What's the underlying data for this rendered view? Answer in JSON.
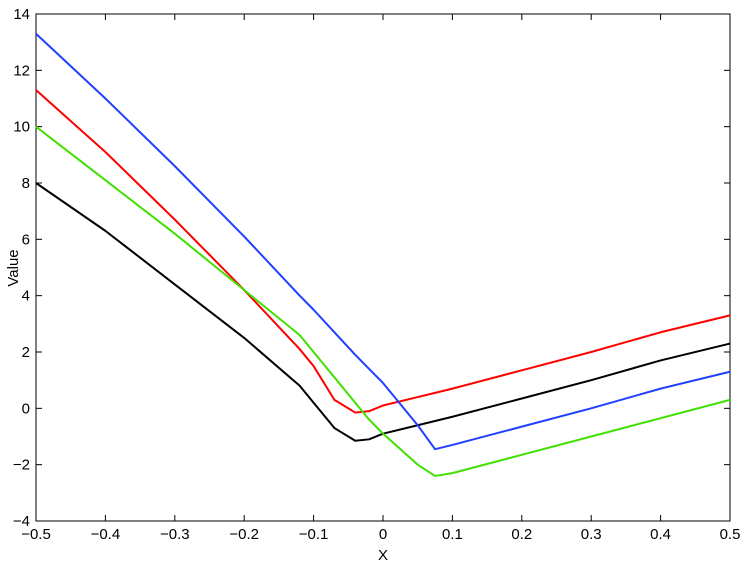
{
  "chart_data": {
    "type": "line",
    "xlabel": "X",
    "ylabel": "Value",
    "x": [
      -0.5,
      -0.4,
      -0.3,
      -0.2,
      -0.12,
      -0.1,
      -0.07,
      -0.04,
      -0.02,
      0,
      0.05,
      0.075,
      0.1,
      0.2,
      0.3,
      0.4,
      0.5
    ],
    "series": [
      {
        "color": "#000000",
        "values": [
          8,
          6.3,
          4.4,
          2.5,
          0.8,
          0.2,
          -0.7,
          -1.15,
          -1.1,
          -0.9,
          -0.6,
          -0.45,
          -0.3,
          0.35,
          1.0,
          1.7,
          2.3
        ]
      },
      {
        "color": "#ff0000",
        "values": [
          11.3,
          9.1,
          6.7,
          4.2,
          2.1,
          1.5,
          0.3,
          -0.15,
          -0.1,
          0.1,
          0.4,
          0.55,
          0.7,
          1.35,
          2.0,
          2.7,
          3.3
        ]
      },
      {
        "color": "#2040ff",
        "values": [
          13.3,
          11.0,
          8.6,
          6.1,
          4.0,
          3.5,
          2.7,
          1.9,
          1.4,
          0.9,
          -0.6,
          -1.45,
          -1.3,
          -0.65,
          0.0,
          0.7,
          1.3
        ]
      },
      {
        "color": "#40e000",
        "values": [
          10,
          8.1,
          6.2,
          4.2,
          2.6,
          2.0,
          1.1,
          0.2,
          -0.4,
          -0.9,
          -2.0,
          -2.4,
          -2.3,
          -1.65,
          -1.0,
          -0.35,
          0.3
        ]
      }
    ],
    "xlim": [
      -0.5,
      0.5
    ],
    "xticks": [
      {
        "value": -0.5,
        "label": "−0.5"
      },
      {
        "value": -0.4,
        "label": "−0.4"
      },
      {
        "value": -0.3,
        "label": "−0.3"
      },
      {
        "value": -0.2,
        "label": "−0.2"
      },
      {
        "value": -0.1,
        "label": "−0.1"
      },
      0,
      0.1,
      0.2,
      0.3,
      0.4,
      0.5
    ],
    "ylim": [
      -4,
      14
    ],
    "yticks": [
      {
        "value": -4,
        "label": "−4"
      },
      {
        "value": -2,
        "label": "−2"
      },
      0,
      2,
      4,
      6,
      8,
      10,
      12,
      14
    ],
    "grid": false
  }
}
